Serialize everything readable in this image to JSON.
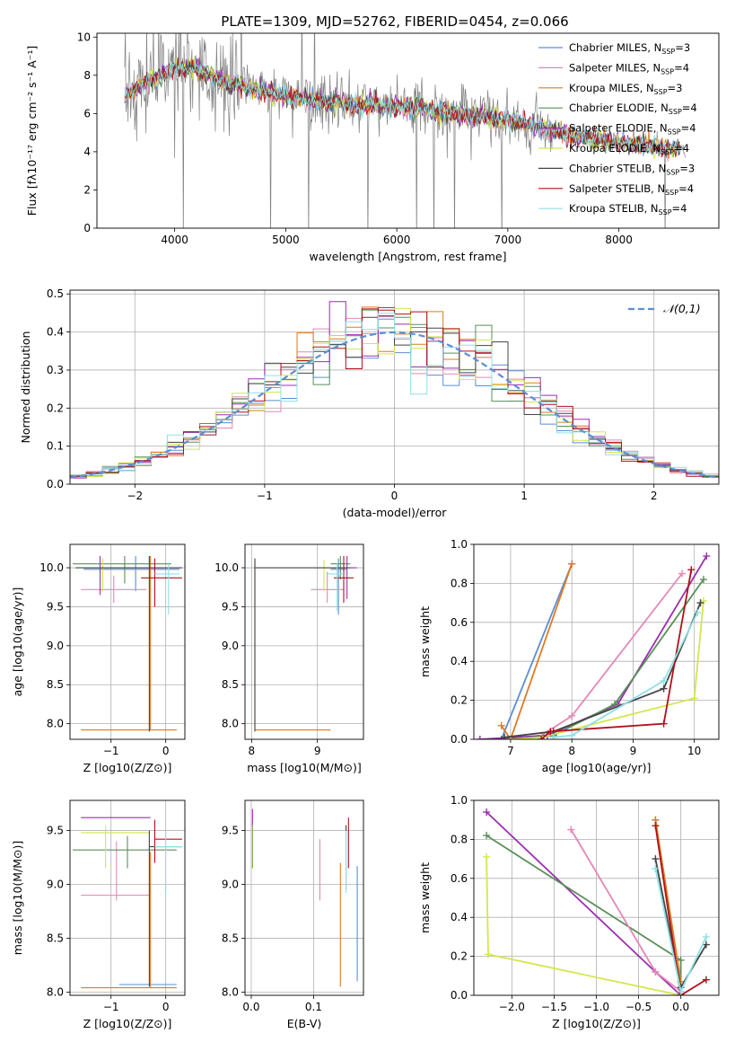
{
  "colors": {
    "Chabrier MILES": "#5b8ed6",
    "Salpeter MILES": "#e487b8",
    "Kroupa MILES": "#e07a1f",
    "Chabrier ELODIE": "#5a8f5a",
    "Salpeter ELODIE": "#9a2fae",
    "Kroupa ELODIE": "#d3e64a",
    "Chabrier STELIB": "#444444",
    "Salpeter STELIB": "#b0101a",
    "Kroupa STELIB": "#8fe0e6",
    "data": "#808080"
  },
  "chart_data": [
    {
      "id": "spectrum",
      "type": "line",
      "title": "PLATE=1309, MJD=52762, FIBERID=0454, z=0.066",
      "xlabel": "wavelength [Angstrom, rest frame]",
      "ylabel": "Flux [fλ10⁻¹⁷ erg cm⁻² s⁻¹ A⁻¹]",
      "xlim": [
        3300,
        8900
      ],
      "ylim": [
        0,
        10.2
      ],
      "xticks": [
        4000,
        5000,
        6000,
        7000,
        8000
      ],
      "yticks": [
        0,
        2,
        4,
        6,
        8,
        10
      ],
      "legend_position": "upper-right",
      "grid": false,
      "data_envelope": {
        "x": [
          3550,
          3700,
          3900,
          4000,
          4200,
          4500,
          5000,
          5500,
          6000,
          6500,
          7000,
          7400,
          7600,
          8000,
          8600
        ],
        "y": [
          6.9,
          7.5,
          8.0,
          8.4,
          8.3,
          7.6,
          6.9,
          6.5,
          6.4,
          6.0,
          5.7,
          5.1,
          4.8,
          4.5,
          4.1
        ]
      },
      "series": [
        {
          "name": "Chabrier MILES, N_SSP=3",
          "color_key": "Chabrier MILES"
        },
        {
          "name": "Salpeter MILES, N_SSP=4",
          "color_key": "Salpeter MILES"
        },
        {
          "name": "Kroupa MILES, N_SSP=3",
          "color_key": "Kroupa MILES"
        },
        {
          "name": "Chabrier ELODIE, N_SSP=4",
          "color_key": "Chabrier ELODIE"
        },
        {
          "name": "Salpeter ELODIE, N_SSP=4",
          "color_key": "Salpeter ELODIE"
        },
        {
          "name": "Kroupa ELODIE, N_SSP=4",
          "color_key": "Kroupa ELODIE"
        },
        {
          "name": "Chabrier STELIB, N_SSP=3",
          "color_key": "Chabrier STELIB"
        },
        {
          "name": "Salpeter STELIB, N_SSP=4",
          "color_key": "Salpeter STELIB"
        },
        {
          "name": "Kroupa STELIB, N_SSP=4",
          "color_key": "Kroupa STELIB"
        }
      ]
    },
    {
      "id": "residuals",
      "type": "histogram",
      "xlabel": "(data-model)/error",
      "ylabel": "Normed distribution",
      "xlim": [
        -2.5,
        2.5
      ],
      "ylim": [
        0,
        0.51
      ],
      "xticks": [
        -2,
        -1,
        0,
        1,
        2
      ],
      "yticks": [
        0.0,
        0.1,
        0.2,
        0.3,
        0.4,
        0.5
      ],
      "grid": true,
      "legend": "𝒩(0,1)",
      "bin_width": 0.125,
      "gaussian": {
        "mean": 0,
        "sigma": 1
      }
    },
    {
      "id": "age-vs-Z",
      "type": "errorbar",
      "xlabel": "Z [log10(Z/Z⊙)]",
      "ylabel": "age  [log10(age/yr)]",
      "xlim": [
        -1.75,
        0.35
      ],
      "ylim": [
        7.8,
        10.3
      ],
      "xticks": [
        -1,
        0
      ],
      "yticks": [
        8.0,
        8.5,
        9.0,
        9.5,
        10.0
      ],
      "grid": true,
      "points": [
        {
          "c": "Chabrier MILES",
          "x": -0.55,
          "xe": [
            -1.5,
            0.25
          ],
          "y": 9.98,
          "ye": [
            9.7,
            10.15
          ]
        },
        {
          "c": "Salpeter MILES",
          "x": -0.95,
          "xe": [
            -1.55,
            -0.35
          ],
          "y": 9.72,
          "ye": [
            9.55,
            9.9
          ]
        },
        {
          "c": "Kroupa MILES",
          "x": -0.28,
          "xe": [
            -1.55,
            0.2
          ],
          "y": 7.92,
          "ye": [
            7.92,
            10.15
          ]
        },
        {
          "c": "Chabrier ELODIE",
          "x": -0.75,
          "xe": [
            -1.7,
            0.1
          ],
          "y": 10.05,
          "ye": [
            9.8,
            10.15
          ]
        },
        {
          "c": "Salpeter ELODIE",
          "x": -1.2,
          "xe": [
            -1.5,
            0.25
          ],
          "y": 10.0,
          "ye": [
            9.65,
            10.15
          ]
        },
        {
          "c": "Kroupa ELODIE",
          "x": -1.15,
          "xe": [
            -1.5,
            -0.45
          ],
          "y": 10.0,
          "ye": [
            9.7,
            10.12
          ]
        },
        {
          "c": "Chabrier STELIB",
          "x": -0.3,
          "xe": [
            -1.65,
            0.3
          ],
          "y": 10.0,
          "ye": [
            7.9,
            10.15
          ]
        },
        {
          "c": "Salpeter STELIB",
          "x": -0.2,
          "xe": [
            -0.45,
            0.3
          ],
          "y": 9.87,
          "ye": [
            9.5,
            10.12
          ]
        },
        {
          "c": "Kroupa STELIB",
          "x": 0.05,
          "xe": [
            -0.2,
            0.25
          ],
          "y": 9.92,
          "ye": [
            9.4,
            10.05
          ]
        }
      ]
    },
    {
      "id": "age-vs-mass",
      "type": "errorbar",
      "xlabel": "mass [log10(M/M⊙)]",
      "ylabel": "",
      "xlim": [
        7.9,
        9.7
      ],
      "ylim": [
        7.8,
        10.3
      ],
      "xticks": [
        8,
        9
      ],
      "yticks": [
        8.0,
        8.5,
        9.0,
        9.5,
        10.0
      ],
      "grid": true,
      "points": [
        {
          "c": "Chabrier MILES",
          "x": 9.32,
          "xe": [
            9.2,
            9.45
          ],
          "y": 9.98,
          "ye": [
            9.4,
            10.12
          ]
        },
        {
          "c": "Salpeter MILES",
          "x": 9.15,
          "xe": [
            8.9,
            9.4
          ],
          "y": 9.72,
          "ye": [
            9.55,
            9.95
          ]
        },
        {
          "c": "Kroupa MILES",
          "x": 8.05,
          "xe": [
            8.05,
            9.2
          ],
          "y": 7.92,
          "ye": [
            7.92,
            10.1
          ]
        },
        {
          "c": "Chabrier ELODIE",
          "x": 9.35,
          "xe": [
            9.2,
            9.5
          ],
          "y": 10.05,
          "ye": [
            9.85,
            10.15
          ]
        },
        {
          "c": "Salpeter ELODIE",
          "x": 9.45,
          "xe": [
            9.2,
            9.6
          ],
          "y": 10.0,
          "ye": [
            9.6,
            10.15
          ]
        },
        {
          "c": "Kroupa ELODIE",
          "x": 9.1,
          "xe": [
            8.95,
            9.3
          ],
          "y": 10.0,
          "ye": [
            9.7,
            10.1
          ]
        },
        {
          "c": "Chabrier STELIB",
          "x": 8.05,
          "xe": [
            8.05,
            9.5
          ],
          "y": 10.0,
          "ye": [
            7.9,
            10.12
          ]
        },
        {
          "c": "Salpeter STELIB",
          "x": 9.4,
          "xe": [
            9.25,
            9.55
          ],
          "y": 9.87,
          "ye": [
            9.55,
            10.15
          ]
        },
        {
          "c": "Kroupa STELIB",
          "x": 9.3,
          "xe": [
            9.15,
            9.4
          ],
          "y": 9.92,
          "ye": [
            9.45,
            10.05
          ]
        }
      ]
    },
    {
      "id": "weight-vs-age",
      "type": "line",
      "xlabel": "age  [log10(age/yr)]",
      "ylabel": "mass weight",
      "xlim": [
        6.4,
        10.4
      ],
      "ylim": [
        0,
        1.0
      ],
      "xticks": [
        7,
        8,
        9,
        10
      ],
      "yticks": [
        0.0,
        0.2,
        0.4,
        0.6,
        0.8,
        1.0
      ],
      "grid": true,
      "series": [
        {
          "c": "Chabrier MILES",
          "x": [
            6.85,
            8.0
          ],
          "y": [
            0.0,
            0.9
          ]
        },
        {
          "c": "Kroupa MILES",
          "x": [
            6.85,
            7.0,
            8.0
          ],
          "y": [
            0.07,
            0.0,
            0.9
          ]
        },
        {
          "c": "Salpeter MILES",
          "x": [
            6.9,
            7.5,
            8.0,
            9.8
          ],
          "y": [
            0.0,
            0.02,
            0.12,
            0.85
          ]
        },
        {
          "c": "Salpeter ELODIE",
          "x": [
            6.5,
            7.6,
            8.75,
            10.2
          ],
          "y": [
            0.0,
            0.02,
            0.18,
            0.94
          ]
        },
        {
          "c": "Chabrier ELODIE",
          "x": [
            7.0,
            7.7,
            8.7,
            10.15
          ],
          "y": [
            0.0,
            0.02,
            0.18,
            0.82
          ]
        },
        {
          "c": "Kroupa ELODIE",
          "x": [
            7.0,
            7.5,
            10.0,
            10.15
          ],
          "y": [
            0.0,
            0.01,
            0.21,
            0.71
          ]
        },
        {
          "c": "Chabrier STELIB",
          "x": [
            6.9,
            7.7,
            9.5,
            10.1
          ],
          "y": [
            0.01,
            0.04,
            0.26,
            0.7
          ]
        },
        {
          "c": "Salpeter STELIB",
          "x": [
            7.5,
            7.65,
            9.5,
            9.95
          ],
          "y": [
            0.0,
            0.04,
            0.08,
            0.87
          ]
        },
        {
          "c": "Kroupa STELIB",
          "x": [
            7.7,
            8.0,
            9.5,
            10.05
          ],
          "y": [
            0.01,
            0.02,
            0.3,
            0.65
          ]
        }
      ]
    },
    {
      "id": "mass-vs-Z",
      "type": "errorbar",
      "xlabel": "Z [log10(Z/Z⊙)]",
      "ylabel": "mass [log10(M/M⊙)]",
      "xlim": [
        -1.75,
        0.35
      ],
      "ylim": [
        7.97,
        9.78
      ],
      "xticks": [
        -1,
        0
      ],
      "yticks": [
        8.0,
        8.5,
        9.0,
        9.5
      ],
      "grid": true,
      "points": [
        {
          "c": "Chabrier MILES",
          "x": -0.5,
          "xe": [
            -0.85,
            0.2
          ],
          "y": 8.07,
          "ye": [
            8.07,
            8.07
          ]
        },
        {
          "c": "Salpeter MILES",
          "x": -0.9,
          "xe": [
            -1.55,
            -0.3
          ],
          "y": 8.9,
          "ye": [
            8.85,
            9.4
          ]
        },
        {
          "c": "Kroupa MILES",
          "x": -0.28,
          "xe": [
            -1.55,
            0.2
          ],
          "y": 8.04,
          "ye": [
            8.04,
            9.3
          ]
        },
        {
          "c": "Chabrier ELODIE",
          "x": -0.7,
          "xe": [
            -1.7,
            0.2
          ],
          "y": 9.32,
          "ye": [
            9.15,
            9.45
          ]
        },
        {
          "c": "Salpeter ELODIE",
          "x": -1.0,
          "xe": [
            -1.55,
            -0.28
          ],
          "y": 9.62,
          "ye": [
            9.62,
            9.62
          ]
        },
        {
          "c": "Kroupa ELODIE",
          "x": -1.1,
          "xe": [
            -1.55,
            -0.3
          ],
          "y": 9.48,
          "ye": [
            9.15,
            9.55
          ]
        },
        {
          "c": "Chabrier STELIB",
          "x": -0.3,
          "xe": [
            -0.3,
            0.3
          ],
          "y": 9.35,
          "ye": [
            8.05,
            9.5
          ]
        },
        {
          "c": "Salpeter STELIB",
          "x": -0.2,
          "xe": [
            -0.2,
            0.3
          ],
          "y": 9.42,
          "ye": [
            9.2,
            9.6
          ]
        },
        {
          "c": "Kroupa STELIB",
          "x": 0.0,
          "xe": [
            -0.2,
            0.3
          ],
          "y": 9.35,
          "ye": [
            8.92,
            9.5
          ]
        }
      ]
    },
    {
      "id": "mass-vs-ebv",
      "type": "errorbar",
      "xlabel": "E(B-V)",
      "ylabel": "",
      "xlim": [
        -0.01,
        0.18
      ],
      "ylim": [
        7.97,
        9.78
      ],
      "xticks": [
        0.0,
        0.1
      ],
      "yticks": [
        8.0,
        8.5,
        9.0,
        9.5
      ],
      "grid": true,
      "points": [
        {
          "c": "Chabrier MILES",
          "x": 0.17,
          "xe": [
            0.17,
            0.17
          ],
          "y": 8.5,
          "ye": [
            8.1,
            9.17
          ]
        },
        {
          "c": "Salpeter MILES",
          "x": 0.11,
          "xe": [
            0.11,
            0.11
          ],
          "y": 9.1,
          "ye": [
            8.85,
            9.42
          ]
        },
        {
          "c": "Kroupa MILES",
          "x": 0.143,
          "xe": [
            0.143,
            0.143
          ],
          "y": 8.6,
          "ye": [
            8.05,
            9.2
          ]
        },
        {
          "c": "Chabrier ELODIE",
          "x": 0.002,
          "xe": [
            0.002,
            0.002
          ],
          "y": 9.32,
          "ye": [
            9.15,
            9.55
          ]
        },
        {
          "c": "Salpeter ELODIE",
          "x": 0.002,
          "xe": [
            0.002,
            0.002
          ],
          "y": 9.62,
          "ye": [
            9.55,
            9.7
          ]
        },
        {
          "c": "Kroupa ELODIE",
          "x": 0.001,
          "xe": [
            0.001,
            0.001
          ],
          "y": 9.35,
          "ye": [
            9.15,
            9.55
          ]
        },
        {
          "c": "Chabrier STELIB",
          "x": 0.152,
          "xe": [
            0.152,
            0.152
          ],
          "y": 9.3,
          "ye": [
            8.95,
            9.55
          ]
        },
        {
          "c": "Salpeter STELIB",
          "x": 0.156,
          "xe": [
            0.156,
            0.156
          ],
          "y": 9.4,
          "ye": [
            9.15,
            9.62
          ]
        },
        {
          "c": "Kroupa STELIB",
          "x": 0.152,
          "xe": [
            0.152,
            0.152
          ],
          "y": 9.25,
          "ye": [
            8.92,
            9.5
          ]
        }
      ]
    },
    {
      "id": "weight-vs-Z",
      "type": "line",
      "xlabel": "Z [log10(Z/Z⊙)]",
      "ylabel": "mass weight",
      "xlim": [
        -2.45,
        0.45
      ],
      "ylim": [
        0,
        1.0
      ],
      "xticks": [
        -2.0,
        -1.5,
        -1.0,
        -0.5,
        0.0
      ],
      "yticks": [
        0.0,
        0.2,
        0.4,
        0.6,
        0.8,
        1.0
      ],
      "grid": true,
      "series": [
        {
          "c": "Salpeter ELODIE",
          "x": [
            -2.3,
            -0.3,
            0.0
          ],
          "y": [
            0.94,
            0.12,
            0.0
          ]
        },
        {
          "c": "Chabrier ELODIE",
          "x": [
            -2.3,
            0.0,
            0.0
          ],
          "y": [
            0.82,
            0.18,
            0.0
          ]
        },
        {
          "c": "Kroupa ELODIE",
          "x": [
            -2.3,
            -2.28,
            0.0
          ],
          "y": [
            0.71,
            0.21,
            0.0
          ]
        },
        {
          "c": "Salpeter MILES",
          "x": [
            -1.3,
            -0.3,
            0.0
          ],
          "y": [
            0.85,
            0.12,
            0.02
          ]
        },
        {
          "c": "Chabrier MILES",
          "x": [
            -0.3,
            0.0,
            0.0
          ],
          "y": [
            0.9,
            0.0,
            0.0
          ]
        },
        {
          "c": "Kroupa MILES",
          "x": [
            -0.3,
            0.0,
            0.0
          ],
          "y": [
            0.9,
            0.07,
            0.0
          ]
        },
        {
          "c": "Chabrier STELIB",
          "x": [
            -0.3,
            0.0,
            0.3
          ],
          "y": [
            0.7,
            0.04,
            0.26
          ]
        },
        {
          "c": "Salpeter STELIB",
          "x": [
            -0.3,
            0.0,
            0.3
          ],
          "y": [
            0.87,
            0.0,
            0.08
          ]
        },
        {
          "c": "Kroupa STELIB",
          "x": [
            -0.3,
            0.0,
            0.3
          ],
          "y": [
            0.65,
            0.02,
            0.3
          ]
        }
      ]
    }
  ]
}
